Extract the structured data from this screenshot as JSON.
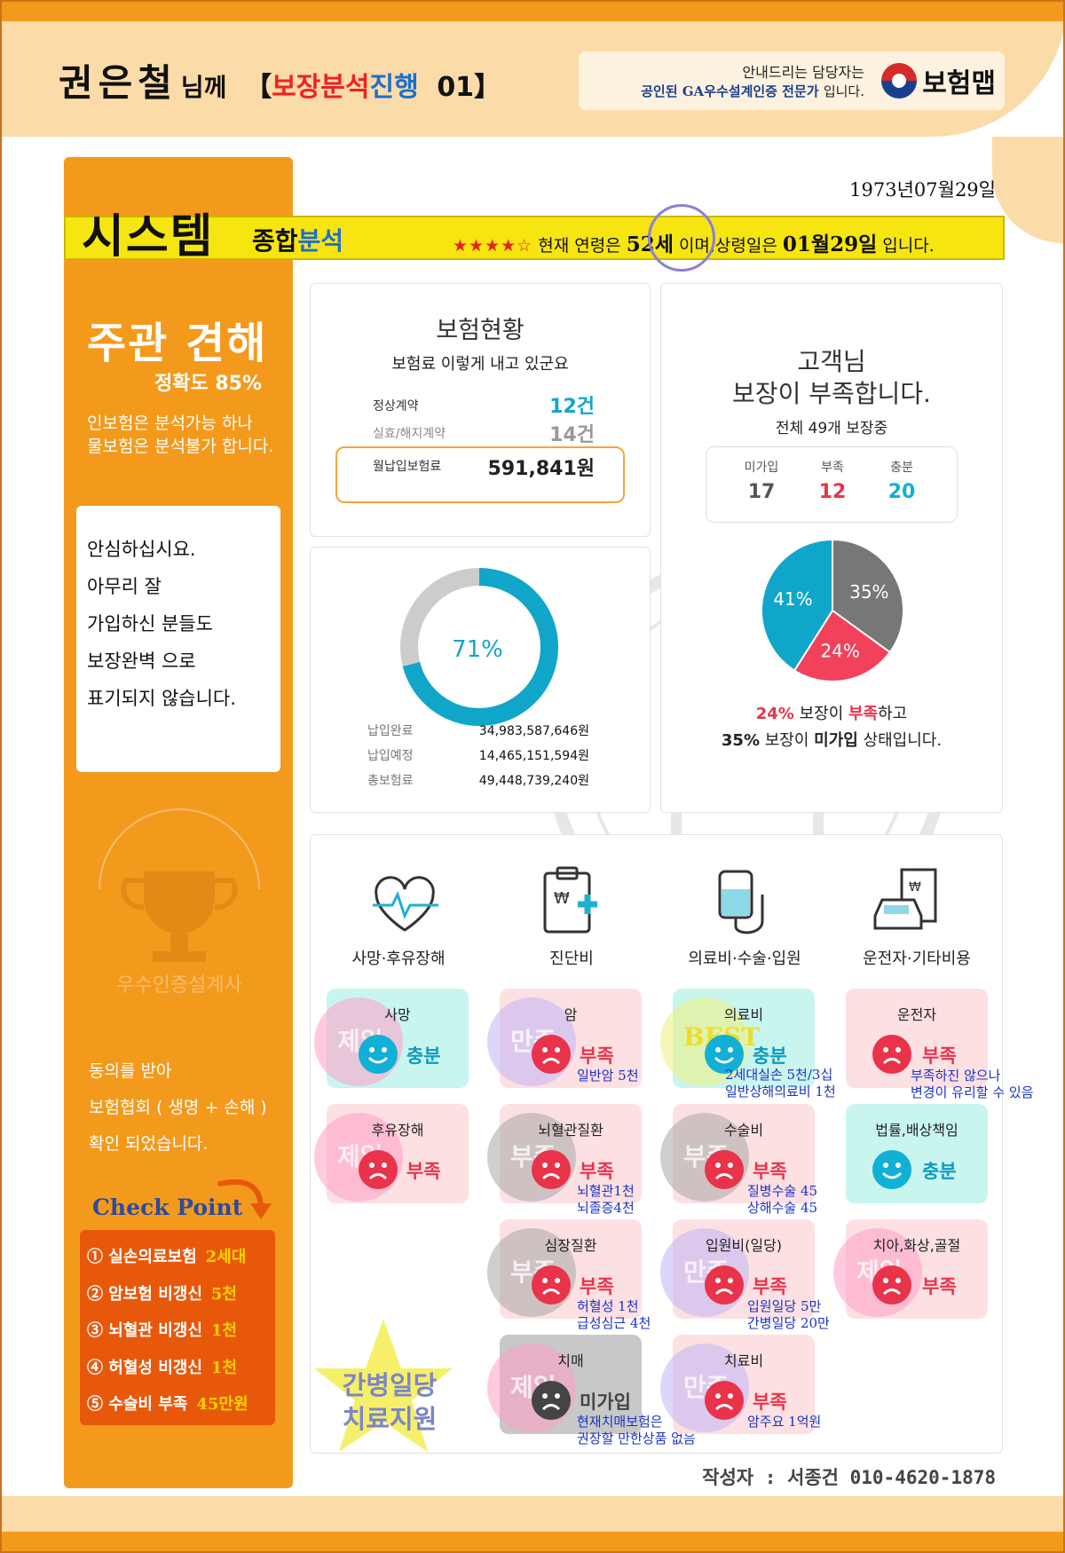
{
  "header": {
    "customer_name": "권은철",
    "honorific": "님께",
    "bracket_open": "【",
    "tag_red": "보장분석",
    "tag_blue": "진행",
    "tag_num": "01",
    "bracket_close": "】",
    "agent_line1": "안내드리는 담당자는",
    "agent_line2": "공인된 GA우수설계인증 전문가",
    "agent_line2_suffix": "입니다.",
    "logo": "보험맵"
  },
  "left_panel": {
    "opinion_title": "주관 견해",
    "accuracy": "정확도 85%",
    "opinion_line1": "인보험은 분석가능 하나",
    "opinion_line2": "물보험은 분석불가 합니다.",
    "card_lines": [
      "안심하십시요.",
      "",
      "아무리 잘",
      "가입하신 분들도",
      "보장완벽 으로",
      "표기되지 않습니다."
    ],
    "badge_text": "우수인증설계사",
    "consent_lines": [
      "동의를 받아",
      "보험협회 ( 생명 + 손해 )",
      "확인 되었습니다."
    ],
    "checkpoint_title": "Check Point",
    "checkpoints": [
      {
        "label": "① 실손의료보험",
        "value": "2세대"
      },
      {
        "label": "② 암보험 비갱신",
        "value": "5천"
      },
      {
        "label": "③ 뇌혈관 비갱신",
        "value": "1천"
      },
      {
        "label": "④ 허혈성 비갱신",
        "value": "1천"
      },
      {
        "label": "⑤ 수술비 부족",
        "value": "45만원"
      }
    ]
  },
  "banner": {
    "date": "1973년07월29일",
    "title": "시스템",
    "sub_black": "종합",
    "sub_blue": "분석",
    "stars": "★★★★☆",
    "age_prefix": "현재 연령은",
    "age": "52세",
    "mid": "이며,상령일은",
    "birthday": "01월29일",
    "tail": "입니다."
  },
  "status_card": {
    "title": "보험현황",
    "subtitle": "보험료 이렇게 내고 있군요",
    "normal_label": "정상계약",
    "normal_value": "12건",
    "lapsed_label": "실효/해지계약",
    "lapsed_value": "14건",
    "premium_label": "월납입보험료",
    "premium_value": "591,841원"
  },
  "donut_card": {
    "percent": 71,
    "percent_label": "71%",
    "rows": [
      {
        "label": "납입완료",
        "value": "34,983,587,646원"
      },
      {
        "label": "납입예정",
        "value": "14,465,151,594원"
      },
      {
        "label": "총보험료",
        "value": "49,448,739,240원"
      }
    ]
  },
  "shortage_card": {
    "title_line1": "고객님",
    "title_line2": "보장이 부족합니다.",
    "subtitle": "전체 49개 보장중",
    "stats": [
      {
        "label": "미가입",
        "value": "17",
        "color": "#555555"
      },
      {
        "label": "부족",
        "value": "12",
        "color": "#e8334a"
      },
      {
        "label": "충분",
        "value": "20",
        "color": "#11b0d6"
      }
    ],
    "caption1_pct": "24%",
    "caption1_mid": "보장이",
    "caption1_word": "부족",
    "caption1_tail": "하고",
    "caption2_pct": "35%",
    "caption2_mid": "보장이",
    "caption2_word": "미가입",
    "caption2_tail": "상태입니다."
  },
  "chart_data": {
    "type": "pie",
    "slices": [
      {
        "label": "35%",
        "value": 35,
        "color": "#777777"
      },
      {
        "label": "24%",
        "value": 24,
        "color": "#f2415a"
      },
      {
        "label": "41%",
        "value": 41,
        "color": "#10a6c9"
      }
    ]
  },
  "coverage": {
    "categories": [
      "사망·후유장해",
      "진단비",
      "의료비·수술·입원",
      "운전자·기타비용"
    ],
    "tiles": {
      "death": {
        "name": "사망",
        "status": "충분",
        "stamp": "제일"
      },
      "disability": {
        "name": "후유장해",
        "status": "부족",
        "stamp": "제일"
      },
      "cancer": {
        "name": "암",
        "status": "부족",
        "stamp": "만족",
        "note1": "일반암 5천",
        "note2": ""
      },
      "brain": {
        "name": "뇌혈관질환",
        "status": "부족",
        "stamp": "부족",
        "note1": "뇌혈관1천",
        "note2": "뇌졸증4천"
      },
      "heart": {
        "name": "심장질환",
        "status": "부족",
        "stamp": "부족",
        "note1": "허혈성 1천",
        "note2": "급성심근 4천"
      },
      "dementia": {
        "name": "치매",
        "status": "미가입",
        "stamp": "제일",
        "note1": "현재치매보험은",
        "note2": "권장할 만한상품 없음"
      },
      "medical": {
        "name": "의료비",
        "status": "충분",
        "stamp": "BEST",
        "note1": "2세대실손 5천/3십",
        "note2": "일반상해의료비 1천"
      },
      "surgery": {
        "name": "수술비",
        "status": "부족",
        "stamp": "부족",
        "note1": "질병수술 45",
        "note2": "상해수술 45"
      },
      "hospital": {
        "name": "입원비(일당)",
        "status": "부족",
        "stamp": "만족",
        "note1": "입원일당 5만",
        "note2": "간병일당 20만"
      },
      "treatment": {
        "name": "치료비",
        "status": "부족",
        "stamp": "만족",
        "note1": "암주요 1억원",
        "note2": ""
      },
      "driver": {
        "name": "운전자",
        "status": "부족",
        "note1": "부족하진 않으나",
        "note2": "변경이 유리할 수 있음"
      },
      "legal": {
        "name": "법률,배상책임",
        "status": "충분"
      },
      "dental": {
        "name": "치아,화상,골절",
        "status": "부족",
        "stamp": "제일"
      }
    },
    "star_line1": "간병일당",
    "star_line2": "치료지원"
  },
  "author": "작성자 : 서종건 010-4620-1878",
  "colors": {
    "orange": "#f39a1c",
    "yellow": "#f6e510",
    "red": "#e8334a",
    "teal": "#11b0d6"
  }
}
